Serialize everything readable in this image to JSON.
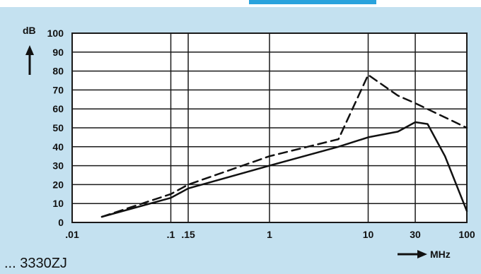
{
  "colors": {
    "background": "#c4e1f0",
    "grid": "#1a1a1a",
    "curve": "#111111",
    "accent": "#2aa3dd"
  },
  "footer_label": "... 3330ZJ",
  "chart_data": {
    "type": "line",
    "title": "",
    "xscale": "log",
    "xlim": [
      0.01,
      100
    ],
    "ylim": [
      0,
      100
    ],
    "ylabel": "dB",
    "xlabel": "MHz",
    "x_ticks": [
      {
        "value": 0.01,
        "label": ".01"
      },
      {
        "value": 0.1,
        "label": ".1"
      },
      {
        "value": 0.15,
        "label": ".15"
      },
      {
        "value": 1,
        "label": "1"
      },
      {
        "value": 10,
        "label": "10"
      },
      {
        "value": 30,
        "label": "30"
      },
      {
        "value": 100,
        "label": "100"
      }
    ],
    "y_ticks": [
      0,
      10,
      20,
      30,
      40,
      50,
      60,
      70,
      80,
      90,
      100
    ],
    "grid": true,
    "series": [
      {
        "style": "dashed",
        "points": [
          [
            0.02,
            3
          ],
          [
            0.1,
            15
          ],
          [
            0.15,
            20
          ],
          [
            1,
            35
          ],
          [
            5,
            44
          ],
          [
            10,
            78
          ],
          [
            20,
            67
          ],
          [
            30,
            63
          ],
          [
            100,
            50
          ]
        ]
      },
      {
        "style": "solid",
        "points": [
          [
            0.02,
            3
          ],
          [
            0.1,
            13
          ],
          [
            0.15,
            18
          ],
          [
            1,
            30
          ],
          [
            5,
            40
          ],
          [
            10,
            45
          ],
          [
            20,
            48
          ],
          [
            30,
            53
          ],
          [
            40,
            52
          ],
          [
            60,
            35
          ],
          [
            100,
            6
          ]
        ]
      }
    ]
  }
}
